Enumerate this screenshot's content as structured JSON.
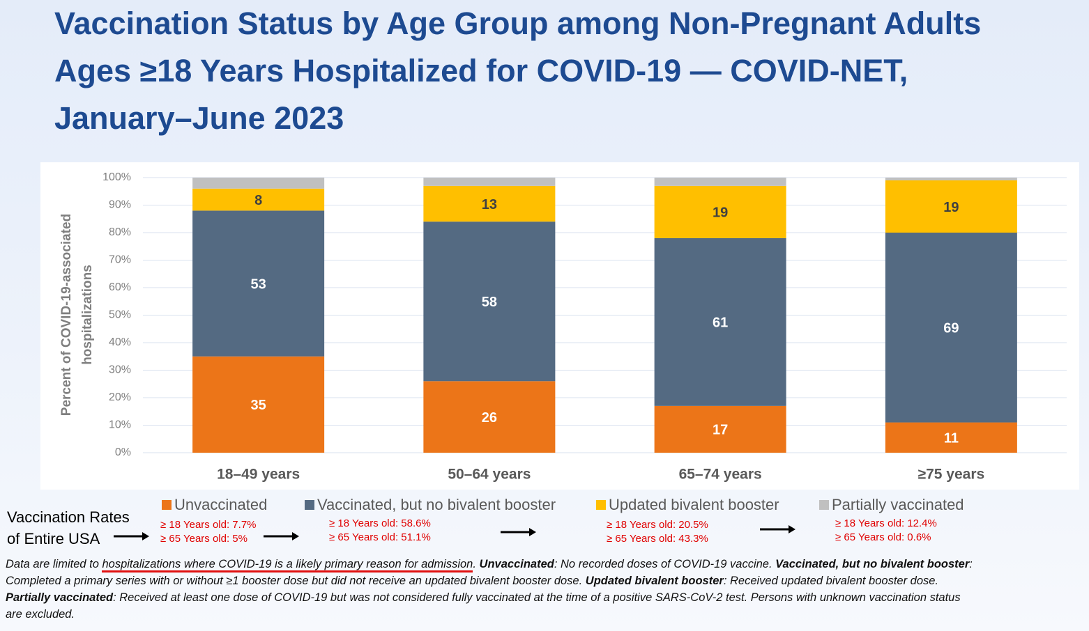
{
  "chart_data": {
    "type": "stacked_bar",
    "title": "Vaccination Status by Age Group among Non-Pregnant Adults Ages ≥18 Years Hospitalized for COVID-19 — COVID-NET, January–June 2023",
    "ylabel": [
      "Percent of COVID-19-associated",
      "hospitalizations"
    ],
    "categories": [
      "18–49 years",
      "50–64 years",
      "65–74 years",
      "≥75 years"
    ],
    "series": [
      {
        "name": "Unvaccinated",
        "color": "#ec7518",
        "values": [
          35,
          26,
          17,
          11
        ],
        "labels": true,
        "label_color": "#ffffff",
        "usa_rates": [
          "≥ 18 Years old: 7.7%",
          "≥ 65 Years old: 5%"
        ]
      },
      {
        "name": "Vaccinated, but no bivalent booster",
        "color": "#546a82",
        "values": [
          53,
          58,
          61,
          69
        ],
        "labels": true,
        "label_color": "#ffffff",
        "usa_rates": [
          "≥ 18 Years old: 58.6%",
          "≥ 65 Years old: 51.1%"
        ]
      },
      {
        "name": "Updated bivalent booster",
        "color": "#ffbf00",
        "values": [
          8,
          13,
          19,
          19
        ],
        "labels": true,
        "label_color": "#404040",
        "usa_rates": [
          "≥ 18 Years old: 20.5%",
          "≥ 65 Years old: 43.3%"
        ]
      },
      {
        "name": "Partially vaccinated",
        "color": "#c0c0c0",
        "values": [
          4,
          3,
          3,
          1
        ],
        "labels": false,
        "label_color": "#404040",
        "usa_rates": [
          "≥ 18 Years old: 12.4%",
          "≥ 65 Years old: 0.6%"
        ]
      }
    ],
    "ylim": [
      0,
      100
    ],
    "yticks": [
      {
        "value": 0,
        "label": "0%"
      },
      {
        "value": 10,
        "label": "10%"
      },
      {
        "value": 20,
        "label": "20%"
      },
      {
        "value": 30,
        "label": "30%"
      },
      {
        "value": 40,
        "label": "40%"
      },
      {
        "value": 50,
        "label": "50%"
      },
      {
        "value": 60,
        "label": "60%"
      },
      {
        "value": 70,
        "label": "70%"
      },
      {
        "value": 80,
        "label": "80%"
      },
      {
        "value": 90,
        "label": "90%"
      },
      {
        "value": 100,
        "label": "100%"
      }
    ],
    "grid": true,
    "usa_rates_label": [
      "Vaccination Rates",
      "of Entire USA"
    ]
  },
  "footnote": [
    [
      {
        "text": "Data are limited to "
      },
      {
        "text": "hospitalizations where COVID-19 is a likely primary reason for admission",
        "underline": true
      },
      {
        "text": ". "
      },
      {
        "text": "Unvaccinated",
        "bold": true
      },
      {
        "text": ": No recorded doses of COVID-19 vaccine. "
      },
      {
        "text": "Vaccinated, but no bivalent booster",
        "bold": true
      },
      {
        "text": ":"
      }
    ],
    [
      {
        "text": "Completed a primary series with or without ≥1 booster dose but did not receive an updated bivalent booster dose. "
      },
      {
        "text": "Updated bivalent booster",
        "bold": true
      },
      {
        "text": ": Received updated bivalent booster dose."
      }
    ],
    [
      {
        "text": "Partially vaccinated",
        "bold": true
      },
      {
        "text": ": Received at least one dose of COVID-19 but was not considered fully vaccinated at the time of a positive SARS-CoV-2 test. Persons with unknown vaccination status"
      }
    ],
    [
      {
        "text": "are excluded."
      }
    ]
  ]
}
